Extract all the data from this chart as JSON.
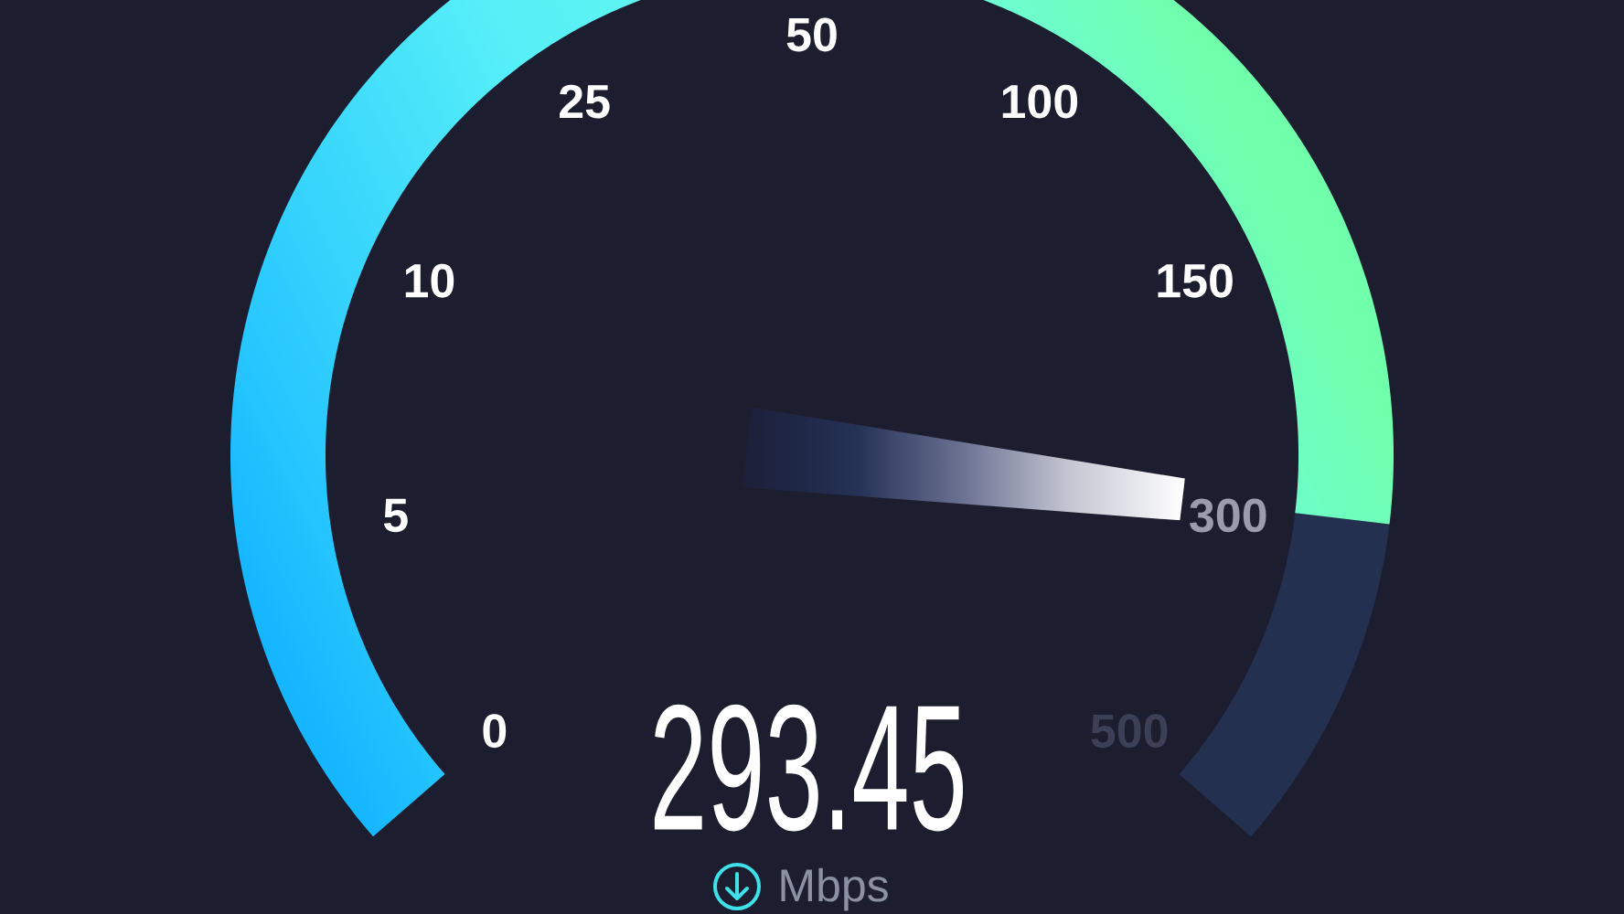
{
  "chart_data": {
    "type": "other",
    "values": [
      293.45
    ],
    "data_labels": true,
    "annotations": [
      "0",
      "5",
      "10",
      "25",
      "50",
      "100",
      "150",
      "300",
      "500",
      "Mbps"
    ]
  }
}
